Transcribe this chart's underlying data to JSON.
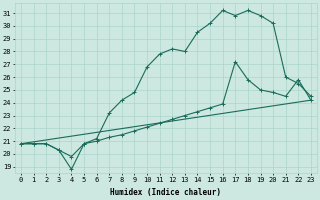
{
  "xlabel": "Humidex (Indice chaleur)",
  "xlim": [
    -0.5,
    23.5
  ],
  "ylim": [
    18.5,
    31.8
  ],
  "xticks": [
    0,
    1,
    2,
    3,
    4,
    5,
    6,
    7,
    8,
    9,
    10,
    11,
    12,
    13,
    14,
    15,
    16,
    17,
    18,
    19,
    20,
    21,
    22,
    23
  ],
  "yticks": [
    19,
    20,
    21,
    22,
    23,
    24,
    25,
    26,
    27,
    28,
    29,
    30,
    31
  ],
  "background_color": "#cce8e0",
  "grid_color": "#aad4cc",
  "line_color": "#1a6b5a",
  "line1_x": [
    0,
    1,
    2,
    3,
    4,
    5,
    6,
    7,
    8,
    9,
    10,
    11,
    12,
    13,
    14,
    15,
    16,
    17,
    18,
    19,
    20,
    21,
    22,
    23
  ],
  "line1_y": [
    20.8,
    20.8,
    20.8,
    20.3,
    18.8,
    20.8,
    21.2,
    23.2,
    24.2,
    24.8,
    26.8,
    27.8,
    28.2,
    28.0,
    29.5,
    30.2,
    31.2,
    30.8,
    31.2,
    30.8,
    30.2,
    26.0,
    25.5,
    24.5
  ],
  "line2_x": [
    0,
    1,
    2,
    3,
    4,
    5,
    6,
    7,
    8,
    9,
    10,
    11,
    12,
    13,
    14,
    15,
    16,
    17,
    18,
    19,
    20,
    21,
    22,
    23
  ],
  "line2_y": [
    20.8,
    20.8,
    20.8,
    20.3,
    19.8,
    20.8,
    21.0,
    21.3,
    21.5,
    21.8,
    22.1,
    22.4,
    22.7,
    23.0,
    23.3,
    23.6,
    23.9,
    27.2,
    25.8,
    25.0,
    24.8,
    24.5,
    25.8,
    24.2
  ],
  "line3_x": [
    0,
    23
  ],
  "line3_y": [
    20.8,
    24.2
  ],
  "marker": "+",
  "markersize": 3.5,
  "linewidth": 0.8,
  "font_size_tick": 5,
  "font_size_label": 5.5,
  "font_family": "monospace"
}
